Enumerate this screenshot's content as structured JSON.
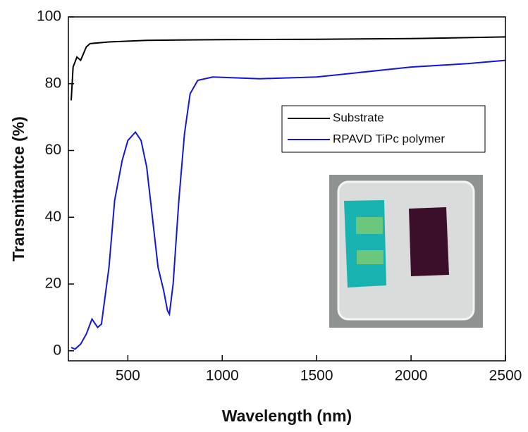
{
  "chart_data": {
    "type": "line",
    "x_label": "Wavelength (nm)",
    "y_label": "Transmittantce (%)",
    "xlim": [
      185,
      2500
    ],
    "ylim": [
      -3,
      100
    ],
    "xticks": [
      500,
      1000,
      1500,
      2000,
      2500
    ],
    "yticks": [
      0,
      20,
      40,
      60,
      80,
      100
    ],
    "legend": "upper right",
    "series": [
      {
        "name": "Substrate",
        "color": "#000000",
        "x": [
          200,
          210,
          230,
          250,
          280,
          300,
          400,
          600,
          1000,
          1500,
          2000,
          2500
        ],
        "values": [
          75,
          85,
          88,
          87,
          91,
          92,
          92.5,
          93,
          93.2,
          93.3,
          93.5,
          94
        ]
      },
      {
        "name": "RPAVD TiPc polymer",
        "color": "#1515d8",
        "x": [
          200,
          220,
          250,
          280,
          310,
          340,
          360,
          400,
          430,
          470,
          500,
          540,
          570,
          600,
          630,
          660,
          690,
          710,
          720,
          740,
          770,
          800,
          830,
          870,
          950,
          1200,
          1500,
          2000,
          2300,
          2500
        ],
        "values": [
          1,
          0.5,
          2,
          5,
          9.5,
          7,
          8,
          25,
          45,
          57,
          63,
          65.5,
          63,
          55,
          40,
          25,
          18,
          12,
          11,
          20,
          45,
          65,
          77,
          81,
          82,
          81.5,
          82,
          85,
          86,
          87
        ]
      }
    ]
  }
}
